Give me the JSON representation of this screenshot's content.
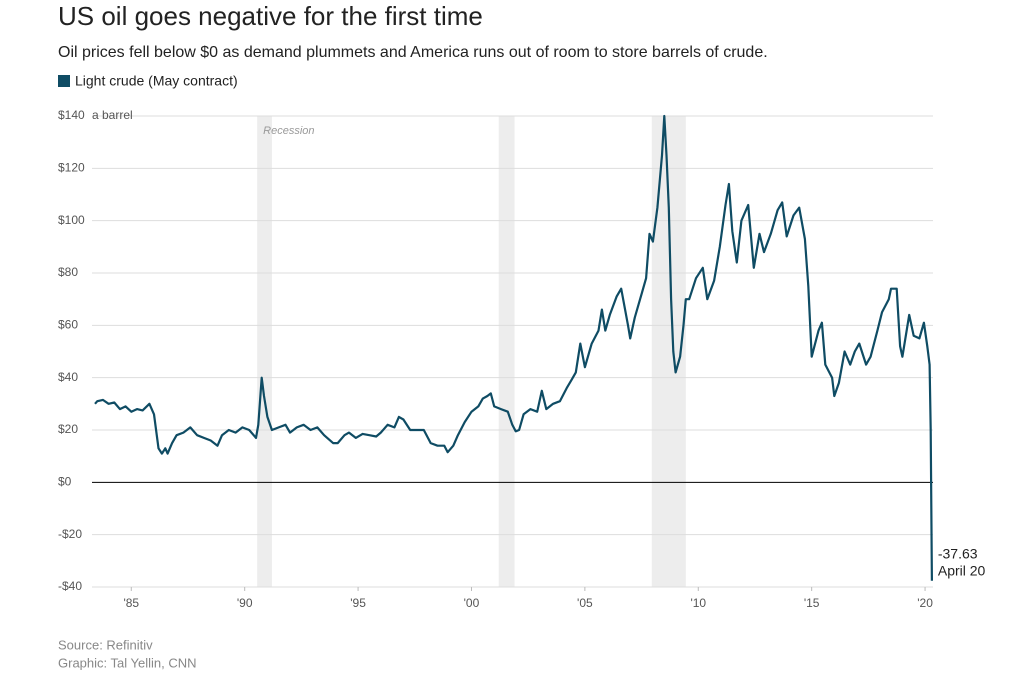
{
  "chart_data": {
    "type": "line",
    "title": "US oil goes negative for the first time",
    "subtitle": "Oil prices fell below $0 as demand plummets and America runs out of room to store barrels of crude.",
    "y_unit_label": "a barrel",
    "recession_label": "Recession",
    "recessions": [
      [
        1990.55,
        1991.2
      ],
      [
        2001.2,
        2001.9
      ],
      [
        2007.95,
        2009.45
      ]
    ],
    "annotation": "April 20",
    "source": "Source: Refinitiv",
    "credit": "Graphic: Tal Yellin, CNN",
    "grid": true,
    "xlim": [
      1983.4,
      2020.35
    ],
    "xticks": [
      {
        "value": 1985,
        "label": "'85"
      },
      {
        "value": 1990,
        "label": "'90"
      },
      {
        "value": 1995,
        "label": "'95"
      },
      {
        "value": 2000,
        "label": "'00"
      },
      {
        "value": 2005,
        "label": "'05"
      },
      {
        "value": 2010,
        "label": "'10"
      },
      {
        "value": 2015,
        "label": "'15"
      },
      {
        "value": 2020,
        "label": "'20"
      }
    ],
    "ylim": [
      -40,
      140
    ],
    "yticks": [
      {
        "value": -40,
        "label": "-$40"
      },
      {
        "value": -20,
        "label": "-$20"
      },
      {
        "value": 0,
        "label": "$0"
      },
      {
        "value": 20,
        "label": "$20"
      },
      {
        "value": 40,
        "label": "$40"
      },
      {
        "value": 60,
        "label": "$60"
      },
      {
        "value": 80,
        "label": "$80"
      },
      {
        "value": 100,
        "label": "$100"
      },
      {
        "value": 120,
        "label": "$120"
      },
      {
        "value": 140,
        "label": "$140"
      }
    ],
    "x": [
      1983.4,
      1983.5,
      1983.75,
      1984,
      1984.25,
      1984.5,
      1984.75,
      1985,
      1985.25,
      1985.5,
      1985.8,
      1986,
      1986.2,
      1986.35,
      1986.5,
      1986.6,
      1986.8,
      1987,
      1987.3,
      1987.6,
      1987.9,
      1988.2,
      1988.5,
      1988.8,
      1989,
      1989.3,
      1989.6,
      1989.9,
      1990.2,
      1990.5,
      1990.6,
      1990.75,
      1990.85,
      1991,
      1991.2,
      1991.5,
      1991.8,
      1992,
      1992.3,
      1992.6,
      1992.9,
      1993.2,
      1993.5,
      1993.9,
      1994.1,
      1994.4,
      1994.6,
      1994.9,
      1995.2,
      1995.5,
      1995.8,
      1996,
      1996.3,
      1996.6,
      1996.8,
      1997,
      1997.3,
      1997.6,
      1997.9,
      1998.2,
      1998.5,
      1998.8,
      1998.95,
      1999.2,
      1999.4,
      1999.7,
      2000,
      2000.3,
      2000.5,
      2000.7,
      2000.85,
      2001,
      2001.3,
      2001.6,
      2001.8,
      2001.95,
      2002.1,
      2002.3,
      2002.6,
      2002.9,
      2003.1,
      2003.3,
      2003.6,
      2003.9,
      2004.2,
      2004.4,
      2004.6,
      2004.8,
      2005,
      2005.3,
      2005.6,
      2005.75,
      2005.9,
      2006.1,
      2006.4,
      2006.6,
      2006.9,
      2007,
      2007.2,
      2007.5,
      2007.7,
      2007.85,
      2008,
      2008.2,
      2008.4,
      2008.5,
      2008.6,
      2008.7,
      2008.8,
      2008.9,
      2009,
      2009.2,
      2009.35,
      2009.45,
      2009.6,
      2009.9,
      2010.2,
      2010.4,
      2010.7,
      2010.95,
      2011.2,
      2011.35,
      2011.5,
      2011.7,
      2011.9,
      2012.2,
      2012.45,
      2012.7,
      2012.9,
      2013.2,
      2013.5,
      2013.7,
      2013.9,
      2014.2,
      2014.45,
      2014.7,
      2014.85,
      2015,
      2015.3,
      2015.45,
      2015.6,
      2015.9,
      2016,
      2016.2,
      2016.45,
      2016.7,
      2016.9,
      2017.1,
      2017.4,
      2017.6,
      2017.9,
      2018.1,
      2018.4,
      2018.5,
      2018.75,
      2018.9,
      2019,
      2019.3,
      2019.5,
      2019.75,
      2019.95,
      2020.1,
      2020.2,
      2020.25,
      2020.3
    ],
    "series": [
      {
        "name": "Light crude (May contract)",
        "color": "#0f4c64",
        "values": [
          30,
          31,
          31.5,
          30,
          30.5,
          28,
          29,
          27,
          28,
          27.5,
          30,
          26,
          13,
          11,
          13,
          11,
          15,
          18,
          19,
          21,
          18,
          17,
          16,
          14,
          18,
          20,
          19,
          21,
          20,
          17,
          22,
          40,
          33,
          25,
          20,
          21,
          22,
          19,
          21,
          22,
          20,
          21,
          18,
          15,
          15,
          18,
          19,
          17,
          18.5,
          18,
          17.5,
          19,
          22,
          21,
          25,
          24,
          20,
          20,
          20,
          15,
          14,
          14,
          11.5,
          14,
          18,
          23,
          27,
          29,
          32,
          33,
          34,
          29,
          28,
          27,
          22,
          19.5,
          20,
          26,
          28,
          27,
          35,
          28,
          30,
          31,
          36,
          39,
          42,
          53,
          44,
          53,
          58,
          66,
          58,
          64,
          71,
          74,
          60,
          55,
          63,
          72,
          78,
          95,
          92,
          105,
          125,
          140,
          125,
          105,
          70,
          50,
          42,
          48,
          60,
          70,
          70,
          78,
          82,
          70,
          77,
          90,
          106,
          114,
          96,
          84,
          100,
          106,
          82,
          95,
          88,
          95,
          104,
          107,
          94,
          102,
          105,
          93,
          75,
          48,
          58,
          61,
          45,
          40,
          33,
          38,
          50,
          45,
          50,
          53,
          45,
          48,
          58,
          65,
          70,
          74,
          74,
          52,
          48,
          64,
          56,
          55,
          61,
          52,
          45,
          20,
          -37.63
        ]
      }
    ]
  }
}
